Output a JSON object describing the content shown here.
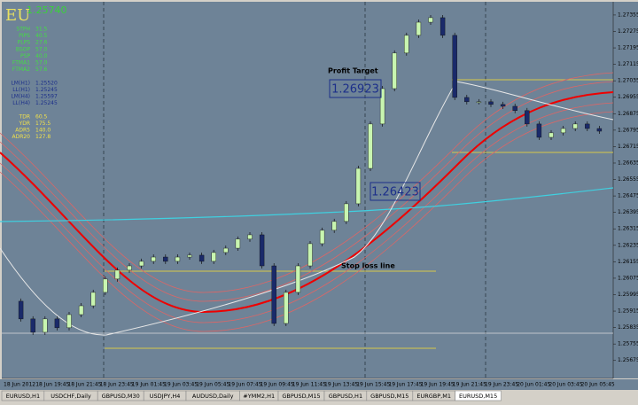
{
  "header": {
    "symbol": "EU",
    "price": "1.25740"
  },
  "chart_data": {
    "type": "candlestick",
    "closes": [
      1.25963,
      1.25877,
      1.25812,
      1.25877,
      1.25834,
      1.25898,
      1.25941,
      1.26006,
      1.26071,
      1.26114,
      1.26135,
      1.26157,
      1.26178,
      1.26157,
      1.26178,
      1.26187,
      1.26157,
      1.262,
      1.26221,
      1.26265,
      1.26286,
      1.26135,
      1.25855,
      1.26006,
      1.26135,
      1.26243,
      1.26308,
      1.26351,
      1.26437,
      1.26609,
      1.26825,
      1.26997,
      1.2717,
      1.27256,
      1.2732,
      1.27342,
      1.27256,
      1.26954,
      1.26933,
      1.26933,
      1.2692,
      1.26911,
      1.2689,
      1.26825,
      1.2676,
      1.26782,
      1.26803,
      1.26825,
      1.26803,
      1.2679
    ],
    "up_color": "#c8f5b0",
    "down_color": "#1a2a6a",
    "ylim": [
      1.25592,
      1.27415
    ],
    "yticks": [
      1.27355,
      1.27275,
      1.27195,
      1.27115,
      1.27035,
      1.26955,
      1.26875,
      1.26795,
      1.26715,
      1.26635,
      1.26555,
      1.26475,
      1.26395,
      1.26315,
      1.26235,
      1.26155,
      1.26075,
      1.25995,
      1.25915,
      1.25835,
      1.25755,
      1.25675
    ],
    "x_labels": [
      "18 Jun 2012",
      "18 Jun 19:45",
      "18 Jun 21:45",
      "18 Jun 23:45",
      "19 Jun 01:45",
      "19 Jun 03:45",
      "19 Jun 05:45",
      "19 Jun 07:45",
      "19 Jun 09:45",
      "19 Jun 11:45",
      "19 Jun 13:45",
      "19 Jun 15:45",
      "19 Jun 17:45",
      "19 Jun 19:45",
      "19 Jun 21:45",
      "19 Jun 23:45",
      "20 Jun 01:45",
      "20 Jun 03:45",
      "20 Jun 05:45"
    ],
    "annotations": {
      "profit_target_label": "Profit Target",
      "profit_target": 1.26923,
      "entry": 1.26423,
      "stop_loss_label": "Stop loss line"
    }
  },
  "indicator_panel": {
    "groups": [
      {
        "color": "#44dd44",
        "rows": [
          [
            "STPH",
            "31.5"
          ],
          [
            "PIPS",
            "40.5"
          ],
          [
            "PLPS",
            "27.6"
          ],
          [
            "BSOP",
            "57.0"
          ],
          [
            "PSP",
            "40.0"
          ],
          [
            "FTMA1",
            "57.0"
          ],
          [
            "FTMA2",
            "57.6"
          ]
        ]
      },
      {
        "color": "#1c2f8a",
        "rows": [
          [
            "LM(H1)",
            "1.25520"
          ],
          [
            "LL(H1)",
            "1.25245"
          ],
          [
            "LM(H4)",
            "1.25597"
          ],
          [
            "LL(H4)",
            "1.25245"
          ]
        ]
      },
      {
        "color": "#f2e24a",
        "rows": [
          [
            "TDR",
            "60.5"
          ],
          [
            "YDR",
            "175.5"
          ],
          [
            "ADR5",
            "140.0"
          ],
          [
            "ADR20",
            "127.8"
          ]
        ]
      }
    ]
  },
  "tabs": [
    "EURUSD,H1",
    "USDCHF,Daily",
    "GBPUSD,M30",
    "USDJPY,H4",
    "AUDUSD,Daily",
    "#YMM2,H1",
    "GBPUSD,M15",
    "GBPUSD,H1",
    "GBPUSD,M15",
    "EURGBP,M1",
    "EURUSD,M15"
  ]
}
